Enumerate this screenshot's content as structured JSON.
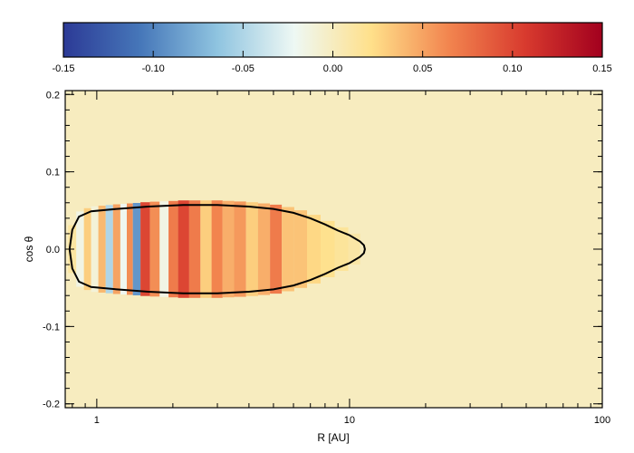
{
  "chart_data": {
    "type": "heatmap",
    "title": "",
    "xlabel": "R [AU]",
    "ylabel": "cos θ",
    "xscale": "log",
    "xlim": [
      0.75,
      100
    ],
    "ylim": [
      -0.205,
      0.205
    ],
    "x_ticks": [
      {
        "value": 1,
        "label": "1"
      },
      {
        "value": 10,
        "label": "10"
      },
      {
        "value": 100,
        "label": "100"
      }
    ],
    "y_ticks": [
      {
        "value": 0.2,
        "label": "0.2"
      },
      {
        "value": 0.1,
        "label": "0.1"
      },
      {
        "value": 0.0,
        "label": "0.0"
      },
      {
        "value": -0.1,
        "label": "-0.1"
      },
      {
        "value": -0.2,
        "label": "-0.2"
      }
    ],
    "background_value": 0.0,
    "colorbar": {
      "range": [
        -0.15,
        0.15
      ],
      "placement": "top",
      "colors": [
        "#2c3a96",
        "#4677b9",
        "#8fc4e0",
        "#eef8f4",
        "#ffe08a",
        "#f2854f",
        "#d83a2e",
        "#a2001e"
      ],
      "ticks": [
        {
          "value": -0.15,
          "label": "-0.15"
        },
        {
          "value": -0.1,
          "label": "-0.10"
        },
        {
          "value": -0.05,
          "label": "-0.05"
        },
        {
          "value": 0.0,
          "label": "0.00"
        },
        {
          "value": 0.05,
          "label": "0.05"
        },
        {
          "value": 0.1,
          "label": "0.10"
        },
        {
          "value": 0.15,
          "label": "0.15"
        }
      ]
    },
    "contour": {
      "color": "#000000",
      "upper": [
        [
          0.78,
          0.0
        ],
        [
          0.8,
          0.025
        ],
        [
          0.85,
          0.042
        ],
        [
          0.95,
          0.049
        ],
        [
          1.2,
          0.052
        ],
        [
          1.6,
          0.055
        ],
        [
          2.2,
          0.057
        ],
        [
          3.0,
          0.057
        ],
        [
          4.0,
          0.055
        ],
        [
          5.0,
          0.052
        ],
        [
          6.0,
          0.047
        ],
        [
          7.0,
          0.04
        ],
        [
          8.0,
          0.032
        ],
        [
          9.0,
          0.024
        ],
        [
          10.0,
          0.018
        ],
        [
          11.0,
          0.01
        ],
        [
          11.4,
          0.005
        ],
        [
          11.5,
          0.0
        ]
      ],
      "lower": [
        [
          11.5,
          0.0
        ],
        [
          11.4,
          -0.005
        ],
        [
          11.0,
          -0.01
        ],
        [
          10.0,
          -0.018
        ],
        [
          9.0,
          -0.024
        ],
        [
          8.0,
          -0.032
        ],
        [
          7.0,
          -0.04
        ],
        [
          6.0,
          -0.047
        ],
        [
          5.0,
          -0.052
        ],
        [
          4.0,
          -0.055
        ],
        [
          3.0,
          -0.057
        ],
        [
          2.2,
          -0.057
        ],
        [
          1.6,
          -0.055
        ],
        [
          1.2,
          -0.052
        ],
        [
          0.95,
          -0.049
        ],
        [
          0.85,
          -0.042
        ],
        [
          0.8,
          -0.025
        ],
        [
          0.78,
          0.0
        ]
      ]
    },
    "bands": [
      {
        "r": 0.8,
        "v": 0.012,
        "w": 0.04
      },
      {
        "r": 0.86,
        "v": -0.015,
        "w": 0.03
      },
      {
        "r": 0.92,
        "v": 0.03,
        "w": 0.03
      },
      {
        "r": 0.98,
        "v": -0.01,
        "w": 0.025
      },
      {
        "r": 1.05,
        "v": 0.04,
        "w": 0.03
      },
      {
        "r": 1.12,
        "v": -0.05,
        "w": 0.025
      },
      {
        "r": 1.2,
        "v": 0.05,
        "w": 0.025
      },
      {
        "r": 1.28,
        "v": -0.02,
        "w": 0.025
      },
      {
        "r": 1.35,
        "v": 0.06,
        "w": 0.025
      },
      {
        "r": 1.43,
        "v": -0.09,
        "w": 0.03
      },
      {
        "r": 1.55,
        "v": 0.1,
        "w": 0.03
      },
      {
        "r": 1.7,
        "v": 0.06,
        "w": 0.03
      },
      {
        "r": 1.85,
        "v": -0.015,
        "w": 0.025
      },
      {
        "r": 2.0,
        "v": 0.07,
        "w": 0.03
      },
      {
        "r": 2.2,
        "v": 0.1,
        "w": 0.03
      },
      {
        "r": 2.45,
        "v": 0.07,
        "w": 0.03
      },
      {
        "r": 2.7,
        "v": 0.03,
        "w": 0.025
      },
      {
        "r": 3.0,
        "v": 0.065,
        "w": 0.03
      },
      {
        "r": 3.3,
        "v": 0.045,
        "w": 0.025
      },
      {
        "r": 3.7,
        "v": 0.055,
        "w": 0.03
      },
      {
        "r": 4.1,
        "v": 0.03,
        "w": 0.025
      },
      {
        "r": 4.6,
        "v": 0.045,
        "w": 0.03
      },
      {
        "r": 5.1,
        "v": 0.07,
        "w": 0.03
      },
      {
        "r": 5.7,
        "v": 0.035,
        "w": 0.025
      },
      {
        "r": 6.4,
        "v": 0.035,
        "w": 0.025
      },
      {
        "r": 7.2,
        "v": 0.025,
        "w": 0.025
      },
      {
        "r": 8.2,
        "v": 0.02,
        "w": 0.02
      },
      {
        "r": 9.3,
        "v": 0.015,
        "w": 0.02
      },
      {
        "r": 10.5,
        "v": 0.01,
        "w": 0.015
      }
    ]
  }
}
